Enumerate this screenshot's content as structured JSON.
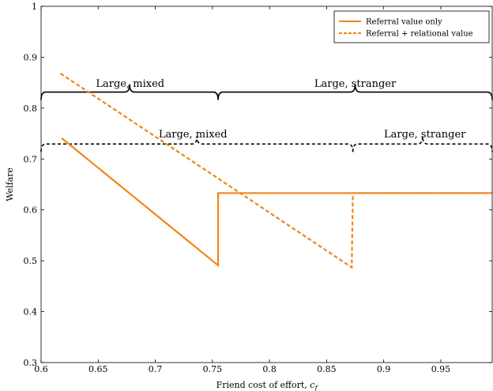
{
  "chart_data": {
    "type": "line",
    "xlabel": "Friend cost of effort, ",
    "xlabel_var": "c",
    "xlabel_sub": "f",
    "ylabel": "Welfare",
    "xlim": [
      0.6,
      0.995
    ],
    "ylim": [
      0.3,
      1.0
    ],
    "x_ticks": [
      {
        "v": 0.6,
        "label": "0.6"
      },
      {
        "v": 0.65,
        "label": "0.65"
      },
      {
        "v": 0.7,
        "label": "0.7"
      },
      {
        "v": 0.75,
        "label": "0.75"
      },
      {
        "v": 0.8,
        "label": "0.8"
      },
      {
        "v": 0.85,
        "label": "0.85"
      },
      {
        "v": 0.9,
        "label": "0.9"
      },
      {
        "v": 0.95,
        "label": "0.95"
      }
    ],
    "y_ticks": [
      {
        "v": 0.3,
        "label": "0.3"
      },
      {
        "v": 0.4,
        "label": "0.4"
      },
      {
        "v": 0.5,
        "label": "0.5"
      },
      {
        "v": 0.6,
        "label": "0.6"
      },
      {
        "v": 0.7,
        "label": "0.7"
      },
      {
        "v": 0.8,
        "label": "0.8"
      },
      {
        "v": 0.9,
        "label": "0.9"
      },
      {
        "v": 1.0,
        "label": "1"
      }
    ],
    "color": "#f28518",
    "legend_position": "top-right",
    "series": [
      {
        "name": "Referral value only",
        "style": "solid",
        "x": [
          0.618,
          0.755,
          0.755,
          0.995
        ],
        "y": [
          0.741,
          0.491,
          0.633,
          0.633
        ]
      },
      {
        "name": "Referral + relational value",
        "style": "dashed",
        "x": [
          0.617,
          0.872,
          0.873,
          0.995
        ],
        "y": [
          0.868,
          0.487,
          0.633,
          0.633
        ]
      }
    ],
    "braces": [
      {
        "style": "solid",
        "from": 0.6,
        "to": 0.755,
        "y": 0.816
      },
      {
        "style": "solid",
        "from": 0.755,
        "to": 0.995,
        "y": 0.816
      },
      {
        "style": "dashed",
        "from": 0.6,
        "to": 0.873,
        "y": 0.714
      },
      {
        "style": "dashed",
        "from": 0.873,
        "to": 0.995,
        "y": 0.714
      }
    ],
    "annotations": [
      {
        "text": "Large, mixed",
        "x": 0.678,
        "y": 0.842
      },
      {
        "text": "Large, stranger",
        "x": 0.875,
        "y": 0.842
      },
      {
        "text": "Large, mixed",
        "x": 0.733,
        "y": 0.742
      },
      {
        "text": "Large, stranger",
        "x": 0.936,
        "y": 0.742
      }
    ]
  }
}
